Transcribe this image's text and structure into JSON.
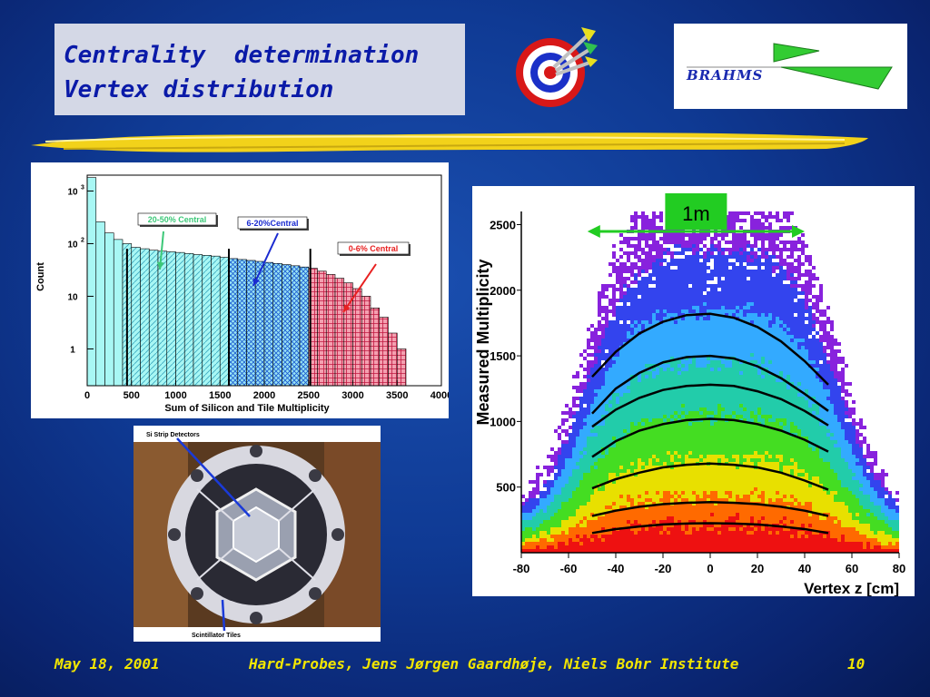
{
  "title": {
    "line1": "Centrality  determination",
    "line2": "Vertex distribution"
  },
  "logo": {
    "text": "BRAHMS"
  },
  "footer": {
    "date": "May 18, 2001",
    "event": "Hard-Probes, Jens Jørgen Gaardhøje, Niels Bohr Institute",
    "page": "10"
  },
  "photo": {
    "label_top": "Si Strip Detectors",
    "label_bottom": "Scintillator Tiles"
  },
  "colors": {
    "yellow_text": "#f2e600",
    "title_blue": "#0a1aa8",
    "cyan_fill": "#8ff3f3",
    "red_fill": "#e8506a"
  },
  "chart_data": [
    {
      "type": "bar",
      "xlabel": "Sum of Silicon and Tile Multiplicity",
      "ylabel": "Count",
      "scale_y": "log",
      "xlim": [
        0,
        4000
      ],
      "ylim": [
        0.2,
        2000
      ],
      "x_ticks": [
        0,
        500,
        1000,
        1500,
        2000,
        2500,
        3000,
        3500,
        4000
      ],
      "y_ticks": [
        {
          "v": 1,
          "label": "1"
        },
        {
          "v": 10,
          "label": "10"
        },
        {
          "v": 100,
          "label": "10",
          "sup": "2"
        },
        {
          "v": 1000,
          "label": "10",
          "sup": "3"
        }
      ],
      "annotations": [
        {
          "label": "20-50% Central",
          "color": "#3cc878"
        },
        {
          "label": "6-20%Central",
          "color": "#1a2ad0"
        },
        {
          "label": "0-6% Central",
          "color": "#e82020"
        }
      ],
      "regions": [
        {
          "from": 450,
          "to": 1600,
          "label": "20-50% Central"
        },
        {
          "from": 1600,
          "to": 2520,
          "label": "6-20%Central"
        },
        {
          "from": 2520,
          "to": 3600,
          "label": "0-6% Central"
        }
      ],
      "series": [
        {
          "x": [
            0,
            100,
            200,
            300,
            400,
            500,
            600,
            700,
            800,
            900,
            1000,
            1100,
            1200,
            1300,
            1400,
            1500,
            1600,
            1700,
            1800,
            1900,
            2000,
            2100,
            2200,
            2300,
            2400,
            2500,
            2600,
            2700,
            2800,
            2900,
            3000,
            3100,
            3200,
            3300,
            3400,
            3500
          ],
          "values": [
            1800,
            260,
            160,
            120,
            100,
            85,
            80,
            75,
            72,
            70,
            68,
            65,
            62,
            60,
            58,
            55,
            52,
            50,
            48,
            46,
            44,
            42,
            40,
            38,
            36,
            34,
            30,
            26,
            22,
            18,
            14,
            10,
            6,
            4,
            2,
            1
          ]
        }
      ]
    },
    {
      "type": "heatmap",
      "xlabel": "Vertex z  [cm]",
      "ylabel": "Measured Multiplicity",
      "xlim": [
        -80,
        80
      ],
      "ylim": [
        0,
        2600
      ],
      "x_ticks": [
        -80,
        -60,
        -40,
        -20,
        0,
        20,
        40,
        60,
        80
      ],
      "y_ticks": [
        500,
        1000,
        1500,
        2000,
        2500
      ],
      "annotation": "1m",
      "annotation_range": [
        -52,
        40
      ],
      "curves": [
        {
          "x": [
            -50,
            -40,
            -30,
            -20,
            -10,
            0,
            10,
            20,
            30,
            40,
            50
          ],
          "y": [
            1340,
            1530,
            1670,
            1760,
            1810,
            1820,
            1790,
            1720,
            1610,
            1460,
            1280
          ]
        },
        {
          "x": [
            -50,
            -40,
            -30,
            -20,
            -10,
            0,
            10,
            20,
            30,
            40,
            50
          ],
          "y": [
            1060,
            1250,
            1370,
            1450,
            1490,
            1500,
            1480,
            1420,
            1330,
            1210,
            1080
          ]
        },
        {
          "x": [
            -50,
            -40,
            -30,
            -20,
            -10,
            0,
            10,
            20,
            30,
            40,
            50
          ],
          "y": [
            960,
            1090,
            1180,
            1240,
            1270,
            1280,
            1270,
            1230,
            1170,
            1080,
            970
          ]
        },
        {
          "x": [
            -50,
            -40,
            -30,
            -20,
            -10,
            0,
            10,
            20,
            30,
            40,
            50
          ],
          "y": [
            730,
            850,
            930,
            980,
            1010,
            1020,
            1010,
            980,
            930,
            860,
            770
          ]
        },
        {
          "x": [
            -50,
            -40,
            -30,
            -20,
            -10,
            0,
            10,
            20,
            30,
            40,
            50
          ],
          "y": [
            490,
            560,
            610,
            650,
            670,
            680,
            670,
            650,
            610,
            550,
            480
          ]
        },
        {
          "x": [
            -50,
            -40,
            -30,
            -20,
            -10,
            0,
            10,
            20,
            30,
            40,
            50
          ],
          "y": [
            280,
            320,
            350,
            370,
            380,
            385,
            380,
            370,
            350,
            320,
            280
          ]
        },
        {
          "x": [
            -50,
            -40,
            -30,
            -20,
            -10,
            0,
            10,
            20,
            30,
            40,
            50
          ],
          "y": [
            150,
            180,
            200,
            215,
            222,
            225,
            222,
            215,
            200,
            180,
            150
          ]
        }
      ]
    }
  ]
}
